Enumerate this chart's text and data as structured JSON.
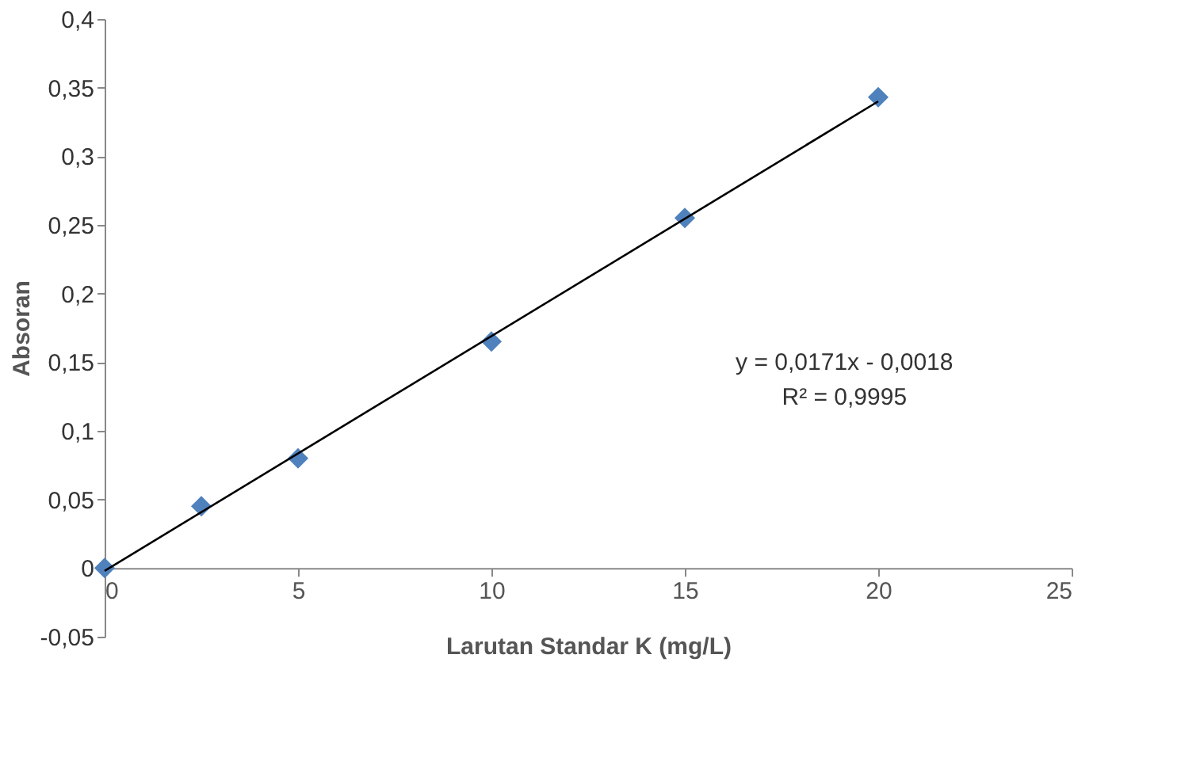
{
  "chart_data": {
    "type": "scatter",
    "xlabel": "Larutan Standar K (mg/L)",
    "ylabel": "Absoran",
    "xlim": [
      0,
      25
    ],
    "xticks": [
      0,
      5,
      10,
      15,
      20,
      25
    ],
    "ylim": [
      -0.05,
      0.4
    ],
    "yticks": [
      {
        "value": -0.05,
        "label": "-0,05"
      },
      {
        "value": 0,
        "label": "0"
      },
      {
        "value": 0.05,
        "label": "0,05"
      },
      {
        "value": 0.1,
        "label": "0,1"
      },
      {
        "value": 0.15,
        "label": "0,15"
      },
      {
        "value": 0.2,
        "label": "0,2"
      },
      {
        "value": 0.25,
        "label": "0,25"
      },
      {
        "value": 0.3,
        "label": "0,3"
      },
      {
        "value": 0.35,
        "label": "0,35"
      },
      {
        "value": 0.4,
        "label": "0,4"
      }
    ],
    "grid": false,
    "series": [
      {
        "marker": "diamond",
        "color": "#4f81bd",
        "x": [
          0,
          2.5,
          5,
          10,
          15,
          20
        ],
        "values": [
          0,
          0.045,
          0.08,
          0.165,
          0.255,
          0.343
        ]
      },
      {
        "type": "line",
        "color": "#000000",
        "x": [
          0,
          20
        ],
        "values": [
          -0.002,
          0.34
        ]
      }
    ],
    "annotations": [
      "y = 0,0171x - 0,0018",
      "R² = 0,9995"
    ]
  }
}
